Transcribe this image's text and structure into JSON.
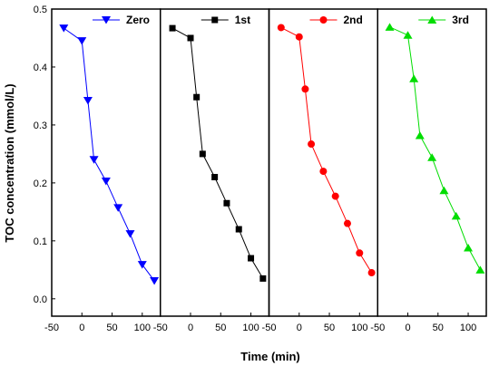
{
  "chart_data": {
    "type": "line",
    "xlabel": "Time (min)",
    "ylabel": "TOC concentration (mmol/L)",
    "ylim": [
      -0.03,
      0.5
    ],
    "xlim": [
      -50,
      130
    ],
    "x_ticks": [
      "-50",
      "0",
      "50",
      "100",
      "-50",
      "0",
      "50",
      "100",
      "-50",
      "0",
      "50",
      "100",
      "-50",
      "0",
      "50",
      "100"
    ],
    "y_ticks": [
      "0.0",
      "0.1",
      "0.2",
      "0.3",
      "0.4",
      "0.5"
    ],
    "legend_position": "top-right of each panel",
    "panels": [
      {
        "legend": "Zero",
        "color": "#0000ff",
        "marker": "triangle-down",
        "x": [
          -30,
          0,
          10,
          20,
          40,
          60,
          80,
          100,
          120
        ],
        "y": [
          0.467,
          0.445,
          0.342,
          0.24,
          0.203,
          0.157,
          0.112,
          0.059,
          0.031
        ]
      },
      {
        "legend": "1st",
        "color": "#000000",
        "marker": "square",
        "x": [
          -30,
          0,
          10,
          20,
          40,
          60,
          80,
          100,
          120
        ],
        "y": [
          0.467,
          0.45,
          0.348,
          0.25,
          0.21,
          0.165,
          0.12,
          0.07,
          0.035
        ]
      },
      {
        "legend": "2nd",
        "color": "#ff0000",
        "marker": "circle",
        "x": [
          -30,
          0,
          10,
          20,
          40,
          60,
          80,
          100,
          120
        ],
        "y": [
          0.468,
          0.452,
          0.362,
          0.267,
          0.22,
          0.177,
          0.13,
          0.079,
          0.045
        ]
      },
      {
        "legend": "3rd",
        "color": "#00dd00",
        "marker": "triangle-up",
        "x": [
          -30,
          0,
          10,
          20,
          40,
          60,
          80,
          100,
          120
        ],
        "y": [
          0.469,
          0.455,
          0.38,
          0.282,
          0.244,
          0.187,
          0.143,
          0.088,
          0.05
        ]
      }
    ]
  }
}
